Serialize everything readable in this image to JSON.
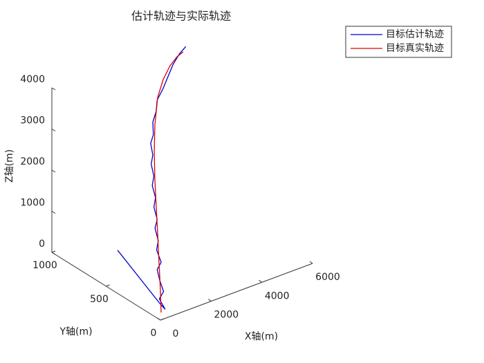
{
  "chart_data": {
    "type": "line3d",
    "title": "估计轨迹与实际轨迹",
    "xlabel": "X轴(m)",
    "ylabel": "Y轴(m)",
    "zlabel": "Z轴(m)",
    "xlim": [
      0,
      6000
    ],
    "xticks": [
      0,
      2000,
      4000,
      6000
    ],
    "ylim": [
      0,
      1000
    ],
    "yticks": [
      0,
      500,
      1000
    ],
    "zlim": [
      0,
      4000
    ],
    "zticks": [
      0,
      1000,
      2000,
      3000,
      4000
    ],
    "legend": "northeast-outside",
    "series": [
      {
        "name": "目标估计轨迹",
        "color": "#0000cc",
        "x": [
          0,
          0,
          60,
          0,
          40,
          0,
          0,
          30,
          0,
          0,
          0,
          0,
          0,
          0,
          0,
          0,
          0,
          0,
          0,
          0,
          0,
          0,
          0,
          100,
          300,
          500,
          750,
          1000
        ],
        "y": [
          395,
          0,
          -30,
          10,
          -20,
          5,
          30,
          0,
          35,
          20,
          50,
          30,
          60,
          45,
          75,
          60,
          85,
          70,
          90,
          65,
          70,
          40,
          30,
          0,
          0,
          0,
          0,
          0
        ],
        "z": [
          1050,
          387,
          300,
          500,
          720,
          950,
          1180,
          1400,
          1650,
          1900,
          2150,
          2400,
          2650,
          2900,
          3150,
          3400,
          3650,
          3900,
          4150,
          4400,
          4700,
          5000,
          5300,
          5600,
          5850,
          6100,
          6300,
          6420
        ]
      },
      {
        "name": "目标真实轨迹",
        "color": "#e00000",
        "x": [
          27,
          0,
          0,
          0,
          0,
          0,
          0,
          0,
          0,
          109,
          382,
          655,
          900
        ],
        "y": [
          0,
          0,
          13,
          25,
          38,
          51,
          57,
          51,
          25,
          0,
          0,
          0,
          0
        ],
        "z": [
          179,
          723,
          1373,
          2026,
          2677,
          3328,
          3990,
          4672,
          5378,
          5824,
          6097,
          6252,
          6314
        ]
      }
    ]
  }
}
